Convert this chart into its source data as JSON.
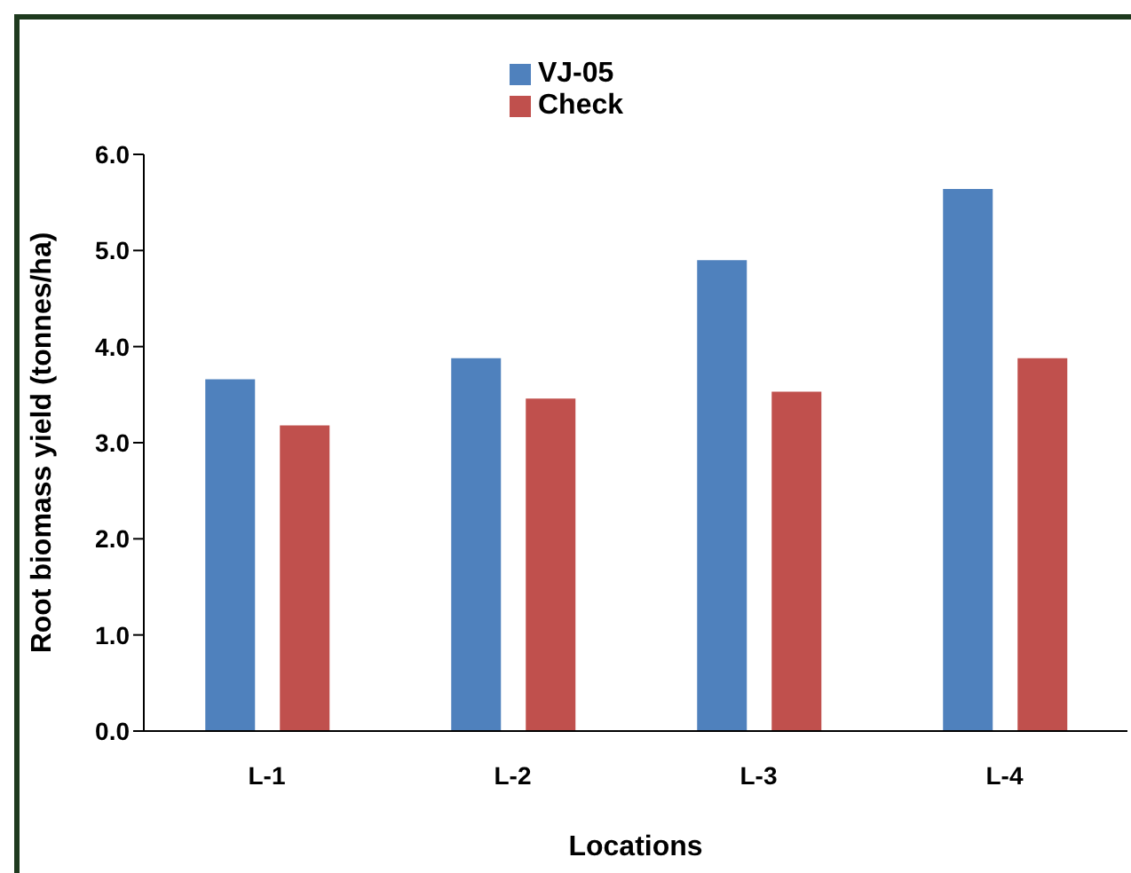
{
  "chart_data": {
    "type": "bar",
    "xlabel": "Locations",
    "ylabel": "Root biomass yield (tonnes/ha)",
    "categories": [
      "L-1",
      "L-2",
      "L-3",
      "L-4"
    ],
    "series": [
      {
        "name": "VJ-05",
        "color": "#4f81bd",
        "values": [
          3.66,
          3.88,
          4.9,
          5.64
        ]
      },
      {
        "name": "Check",
        "color": "#c0504d",
        "values": [
          3.18,
          3.46,
          3.53,
          3.88
        ]
      }
    ],
    "ylim": [
      0,
      6
    ],
    "yticks": [
      {
        "value": 0,
        "label": "0.0"
      },
      {
        "value": 1,
        "label": "1.0"
      },
      {
        "value": 2,
        "label": "2.0"
      },
      {
        "value": 3,
        "label": "3.0"
      },
      {
        "value": 4,
        "label": "4.0"
      },
      {
        "value": 5,
        "label": "5.0"
      },
      {
        "value": 6,
        "label": "6.0"
      }
    ],
    "legend": "top"
  }
}
